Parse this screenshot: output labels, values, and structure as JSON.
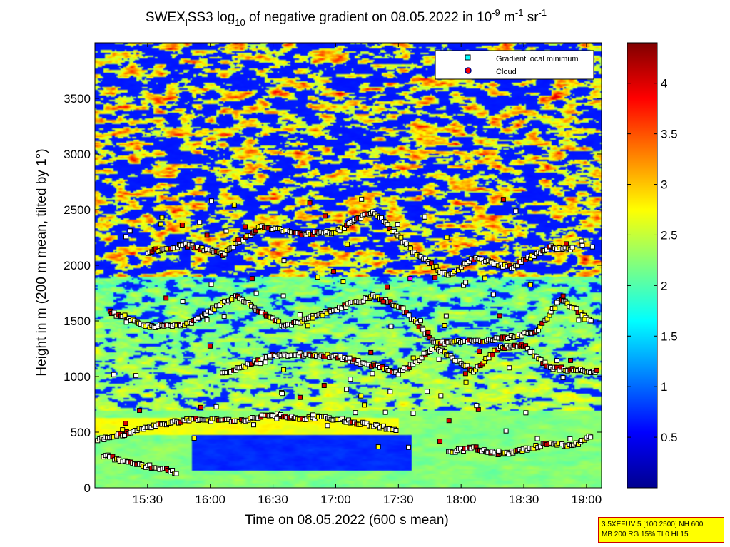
{
  "chart_data": {
    "type": "heatmap",
    "title": "SWEX_lSS3 log10 of negative gradient on 08.05.2022 in 10^-9 m^-1 sr^-1",
    "title_parts": {
      "prefix": "SWEX",
      "sub_l": "l",
      "mid": "SS3 log",
      "sub_10": "10",
      "after_log": " of negative gradient on 08.05.2022 in 10",
      "sup_exp1": "-9",
      "unit_m": " m",
      "sup_exp2": "-1",
      "unit_sr": " sr",
      "sup_exp3": "-1"
    },
    "xlabel": "Time on 08.05.2022 (600 s mean)",
    "ylabel": "Height in m (200 m mean, tilted by 1°)",
    "x_ticks": [
      "15:30",
      "16:00",
      "16:30",
      "17:00",
      "17:30",
      "18:00",
      "18:30",
      "19:00"
    ],
    "x_tick_hours": [
      15.5,
      16.0,
      16.5,
      17.0,
      17.5,
      18.0,
      18.5,
      19.0
    ],
    "xlim_hours": [
      15.08,
      19.12
    ],
    "y_ticks": [
      "0",
      "500",
      "1000",
      "1500",
      "2000",
      "2500",
      "3000",
      "3500"
    ],
    "y_tick_values": [
      0,
      500,
      1000,
      1500,
      2000,
      2500,
      3000,
      3500
    ],
    "ylim": [
      0,
      4000
    ],
    "colorbar": {
      "ticks": [
        "0.5",
        "1",
        "1.5",
        "2",
        "2.5",
        "3",
        "3.5",
        "4"
      ],
      "tick_values": [
        0.5,
        1,
        1.5,
        2,
        2.5,
        3,
        3.5,
        4
      ],
      "range": [
        0,
        4.4
      ],
      "colormap": "jet"
    },
    "legend": {
      "placement": "top-right",
      "entries": [
        {
          "label": "Gradient local minimum",
          "marker": "square",
          "color": "#00ffff"
        },
        {
          "label": "Cloud",
          "marker": "circle",
          "color": "#ff0000"
        }
      ]
    },
    "layers": [
      {
        "name": "surface",
        "points": [
          [
            15.1,
            430
          ],
          [
            15.3,
            480
          ],
          [
            15.5,
            540
          ],
          [
            15.7,
            590
          ],
          [
            15.9,
            620
          ],
          [
            16.1,
            600
          ],
          [
            16.3,
            610
          ],
          [
            16.5,
            660
          ],
          [
            16.7,
            620
          ],
          [
            16.9,
            640
          ],
          [
            17.1,
            600
          ],
          [
            17.3,
            560
          ],
          [
            17.5,
            520
          ]
        ]
      },
      {
        "name": "low",
        "points": [
          [
            15.15,
            290
          ],
          [
            15.3,
            240
          ],
          [
            15.45,
            200
          ],
          [
            15.6,
            180
          ],
          [
            15.75,
            130
          ]
        ]
      },
      {
        "name": "late-low",
        "points": [
          [
            17.9,
            320
          ],
          [
            18.1,
            360
          ],
          [
            18.3,
            300
          ],
          [
            18.5,
            340
          ],
          [
            18.7,
            400
          ],
          [
            18.9,
            380
          ],
          [
            19.05,
            480
          ]
        ]
      },
      {
        "name": "mid-1000",
        "points": [
          [
            16.1,
            1020
          ],
          [
            16.5,
            1190
          ],
          [
            16.7,
            1200
          ],
          [
            17.0,
            1180
          ],
          [
            17.3,
            1100
          ],
          [
            17.5,
            1030
          ],
          [
            17.8,
            1260
          ],
          [
            18.1,
            1050
          ],
          [
            18.3,
            1260
          ],
          [
            18.5,
            1280
          ],
          [
            18.7,
            1080
          ],
          [
            18.9,
            1060
          ],
          [
            19.1,
            1040
          ]
        ]
      },
      {
        "name": "mid-1500",
        "points": [
          [
            15.2,
            1580
          ],
          [
            15.5,
            1450
          ],
          [
            15.8,
            1460
          ],
          [
            16.2,
            1720
          ],
          [
            16.6,
            1450
          ],
          [
            17.3,
            1720
          ],
          [
            17.5,
            1640
          ],
          [
            17.8,
            1300
          ],
          [
            18.2,
            1320
          ],
          [
            18.6,
            1400
          ],
          [
            18.8,
            1700
          ],
          [
            19.05,
            1480
          ]
        ]
      },
      {
        "name": "upper-2100",
        "points": [
          [
            15.5,
            2120
          ],
          [
            15.8,
            2180
          ],
          [
            16.1,
            2100
          ],
          [
            16.4,
            2350
          ],
          [
            16.7,
            2280
          ],
          [
            17.0,
            2300
          ],
          [
            17.3,
            2490
          ],
          [
            17.6,
            2140
          ],
          [
            17.9,
            1900
          ],
          [
            18.1,
            2060
          ],
          [
            18.4,
            1980
          ],
          [
            18.7,
            2160
          ],
          [
            18.9,
            2150
          ]
        ]
      }
    ],
    "random_points": {
      "count": 480,
      "cloud_fraction": 0.22,
      "magenta_fraction": 0.02
    }
  },
  "info_box": {
    "line1": "3.5XEFUV 5 [100 2500] NH 600",
    "line2": "MB 200 RG 15% TI 0 HI 15"
  }
}
